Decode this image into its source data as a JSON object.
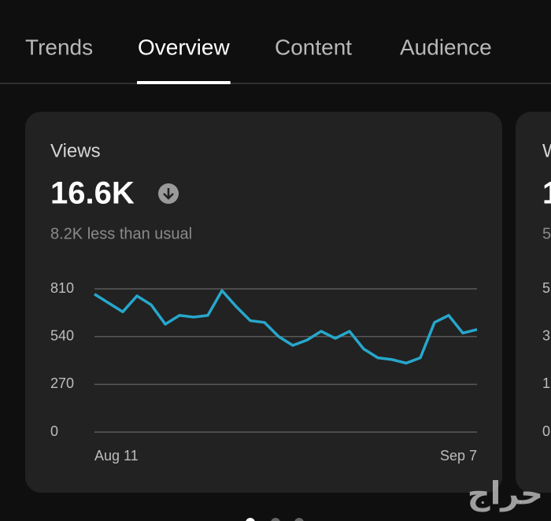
{
  "tabs": [
    "Trends",
    "Overview",
    "Content",
    "Audience"
  ],
  "active_tab": 1,
  "card": {
    "title": "Views",
    "value": "16.6K",
    "subtitle": "8.2K less than usual"
  },
  "chart_data": {
    "type": "line",
    "categories": [
      "Aug 11",
      null,
      null,
      null,
      null,
      null,
      null,
      null,
      null,
      null,
      null,
      null,
      null,
      null,
      null,
      null,
      null,
      null,
      null,
      null,
      null,
      null,
      null,
      null,
      null,
      null,
      null,
      "Sep 7"
    ],
    "values": [
      780,
      730,
      680,
      770,
      720,
      610,
      660,
      650,
      660,
      800,
      710,
      630,
      620,
      540,
      490,
      520,
      570,
      530,
      570,
      470,
      420,
      410,
      390,
      420,
      620,
      660,
      560,
      580
    ],
    "color": "#27a7cc",
    "ylim": [
      0,
      810
    ],
    "yticks": [
      0,
      270,
      540,
      810
    ],
    "grid": true
  },
  "second_card": {
    "title": "W",
    "value": "1",
    "subtitle": "5",
    "tick_labels": [
      "5",
      "3",
      "1",
      "0"
    ]
  },
  "watermark": "حراج"
}
